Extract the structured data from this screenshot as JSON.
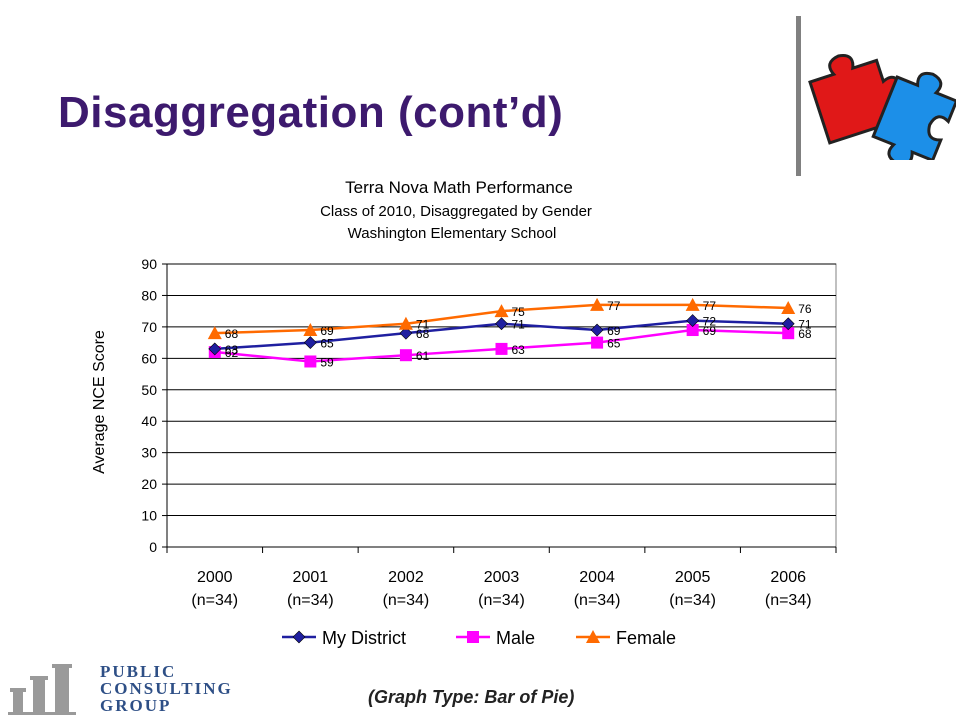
{
  "slide": {
    "title": "Disaggregation (cont’d)",
    "caption": "(Graph Type: Bar of Pie)"
  },
  "logo": {
    "lines": [
      "PUBLIC",
      "CONSULTING",
      "GROUP"
    ]
  },
  "chart_data": {
    "type": "line",
    "title": "Terra Nova Math Performance",
    "subtitle_lines": [
      "Class of 2010, Disaggregated by Gender",
      "Washington Elementary School"
    ],
    "ylabel": "Average NCE Score",
    "xlabel": "",
    "ylim": [
      0,
      90
    ],
    "yticks": [
      0,
      10,
      20,
      30,
      40,
      50,
      60,
      70,
      80,
      90
    ],
    "grid": true,
    "legend_position": "bottom",
    "categories": [
      {
        "year": "2000",
        "n": "(n=34)"
      },
      {
        "year": "2001",
        "n": "(n=34)"
      },
      {
        "year": "2002",
        "n": "(n=34)"
      },
      {
        "year": "2003",
        "n": "(n=34)"
      },
      {
        "year": "2004",
        "n": "(n=34)"
      },
      {
        "year": "2005",
        "n": "(n=34)"
      },
      {
        "year": "2006",
        "n": "(n=34)"
      }
    ],
    "series": [
      {
        "name": "My District",
        "color": "#1f1fa0",
        "marker": "diamond",
        "values": [
          63,
          65,
          68,
          71,
          69,
          72,
          71
        ]
      },
      {
        "name": "Male",
        "color": "#ff00ff",
        "marker": "square",
        "values": [
          62,
          59,
          61,
          63,
          65,
          69,
          68
        ]
      },
      {
        "name": "Female",
        "color": "#ff6a00",
        "marker": "triangle",
        "values": [
          68,
          69,
          71,
          75,
          77,
          77,
          76
        ]
      }
    ]
  }
}
